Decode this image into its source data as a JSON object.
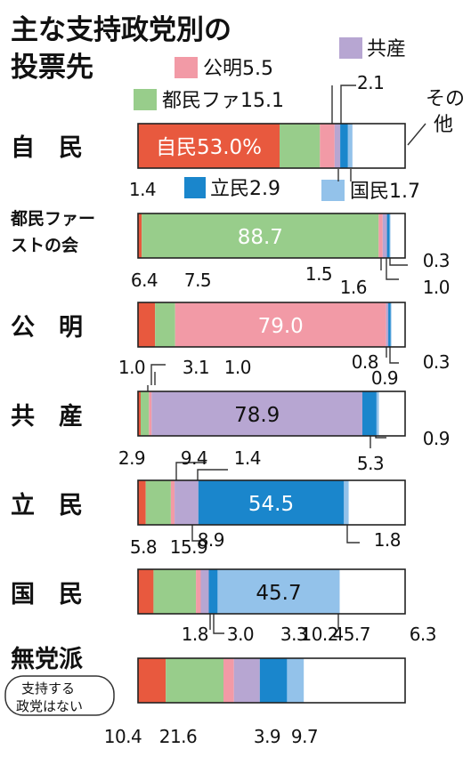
{
  "title_lines": [
    "主な支持政党別の",
    "投票先"
  ],
  "colors": {
    "自民": "#e8593e",
    "都民ファ": "#98cd8b",
    "公明": "#f29aa6",
    "共産": "#b7a6d2",
    "立民": "#1a86cc",
    "国民": "#93c2ea",
    "その他": "#ffffff"
  },
  "legend": {
    "ldp": "自民53.0%",
    "tomin": "都民ファ15.1",
    "komei": "公明5.5",
    "jcp": "共産",
    "jcp_value": "2.1",
    "cdp": "立民2.9",
    "dpp": "国民1.7",
    "other": "その他"
  },
  "row_labels": {
    "ldp": "自　民",
    "tomin_line1": "都民ファー",
    "tomin_line2": "ストの会",
    "komei": "公　明",
    "jcp": "共　産",
    "cdp": "立　民",
    "dpp": "国　民",
    "indep": "無党派",
    "indep_sub1": "支持する",
    "indep_sub2": "政党はない"
  },
  "chart_data": {
    "type": "bar",
    "orientation": "horizontal",
    "stacked": true,
    "title": "主な支持政党別の投票先",
    "xlim": [
      0,
      100
    ],
    "series_names": [
      "自民",
      "都民ファ",
      "公明",
      "共産",
      "立民",
      "国民",
      "その他"
    ],
    "rows": [
      {
        "name": "自民",
        "values": [
          53.0,
          15.1,
          5.5,
          2.1,
          2.9,
          1.7,
          19.7
        ]
      },
      {
        "name": "都民ファーストの会",
        "values": [
          1.4,
          88.7,
          1.5,
          1.6,
          1.0,
          0.3,
          5.5
        ]
      },
      {
        "name": "公明",
        "values": [
          6.4,
          7.5,
          79.0,
          0.8,
          0.9,
          0.3,
          5.1
        ]
      },
      {
        "name": "共産",
        "values": [
          1.0,
          3.1,
          1.0,
          78.9,
          5.3,
          0.9,
          9.8
        ]
      },
      {
        "name": "立民",
        "values": [
          2.9,
          9.4,
          1.4,
          8.9,
          54.5,
          1.8,
          21.1
        ]
      },
      {
        "name": "国民",
        "values": [
          5.8,
          15.9,
          1.8,
          3.0,
          3.3,
          45.7,
          24.5
        ]
      },
      {
        "name": "無党派（支持する政党はない）",
        "values": [
          10.4,
          21.6,
          3.9,
          9.7,
          10.2,
          6.3,
          37.9
        ]
      }
    ],
    "value_labels": {
      "tomin": {
        "ldp": "1.4",
        "tomin": "88.7",
        "komei": "1.5",
        "jcp": "1.6",
        "cdp": "1.0",
        "dpp": "0.3"
      },
      "komei": {
        "ldp": "6.4",
        "tomin": "7.5",
        "komei": "79.0",
        "jcp": "0.8",
        "cdp": "0.9",
        "dpp": "0.3"
      },
      "jcp": {
        "ldp": "1.0",
        "tomin": "3.1",
        "komei": "1.0",
        "jcp": "78.9",
        "cdp": "5.3",
        "dpp": "0.9"
      },
      "cdp": {
        "ldp": "2.9",
        "tomin": "9.4",
        "komei": "1.4",
        "jcp": "8.9",
        "cdp": "54.5",
        "dpp": "1.8"
      },
      "dpp": {
        "ldp": "5.8",
        "tomin": "15.9",
        "komei": "1.8",
        "jcp": "3.0",
        "cdp": "3.3",
        "dpp": "45.7"
      },
      "indep": {
        "ldp": "10.4",
        "tomin": "21.6",
        "komei": "3.9",
        "jcp": "9.7",
        "cdp": "10.2",
        "dpp": "6.3"
      }
    }
  }
}
